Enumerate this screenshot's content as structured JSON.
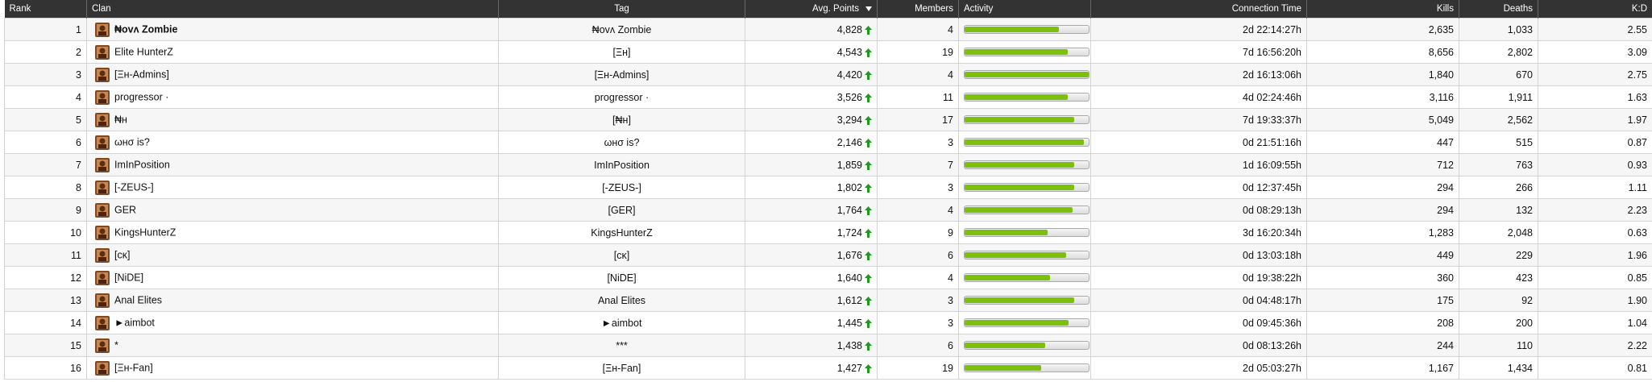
{
  "table": {
    "columns": [
      "Rank",
      "Clan",
      "Tag",
      "Avg. Points",
      "Members",
      "Activity",
      "Connection Time",
      "Kills",
      "Deaths",
      "K:D"
    ],
    "rows": [
      [
        "1",
        "₦ovʌ Zombie",
        "₦ovʌ Zombie",
        "4,828",
        "4",
        76,
        "2d 22:14:27h",
        "2,635",
        "1,033",
        "2.55"
      ],
      [
        "2",
        "Elite HunterZ",
        "[Ξн]",
        "4,543",
        "19",
        83,
        "7d 16:56:20h",
        "8,656",
        "2,802",
        "3.09"
      ],
      [
        "3",
        "[Ξн-Admins]",
        "[Ξн-Admins]",
        "4,420",
        "4",
        100,
        "2d 16:13:06h",
        "1,840",
        "670",
        "2.75"
      ],
      [
        "4",
        "progressor ·",
        "progressor ·",
        "3,526",
        "11",
        83,
        "4d 02:24:46h",
        "3,116",
        "1,911",
        "1.63"
      ],
      [
        "5",
        "₦н",
        "[₦н]",
        "3,294",
        "17",
        88,
        "7d 19:33:37h",
        "5,049",
        "2,562",
        "1.97"
      ],
      [
        "6",
        "ωнσ is?",
        "ωнσ is?",
        "2,146",
        "3",
        96,
        "0d 21:51:16h",
        "447",
        "515",
        "0.87"
      ],
      [
        "7",
        "ImInPosition",
        "ImInPosition",
        "1,859",
        "7",
        88,
        "1d 16:09:55h",
        "712",
        "763",
        "0.93"
      ],
      [
        "8",
        "[-ZEUS-]",
        "[-ZEUS-]",
        "1,802",
        "3",
        88,
        "0d 12:37:45h",
        "294",
        "266",
        "1.11"
      ],
      [
        "9",
        "GER",
        "[GER]",
        "1,764",
        "4",
        87,
        "0d 08:29:13h",
        "294",
        "132",
        "2.23"
      ],
      [
        "10",
        "KingsHunterZ",
        "KingsHunterZ",
        "1,724",
        "9",
        67,
        "3d 16:20:34h",
        "1,283",
        "2,048",
        "0.63"
      ],
      [
        "11",
        "[cκ]",
        "[cκ]",
        "1,676",
        "6",
        82,
        "0d 13:03:18h",
        "449",
        "229",
        "1.96"
      ],
      [
        "12",
        "[NiDE]",
        "[NiDE]",
        "1,640",
        "4",
        69,
        "0d 19:38:22h",
        "360",
        "423",
        "0.85"
      ],
      [
        "13",
        "Anal Elites",
        "Anal Elites",
        "1,612",
        "3",
        88,
        "0d 04:48:17h",
        "175",
        "92",
        "1.90"
      ],
      [
        "14",
        "►aimbot",
        "►aimbot",
        "1,445",
        "3",
        84,
        "0d 09:45:36h",
        "208",
        "200",
        "1.04"
      ],
      [
        "15",
        "*",
        "***",
        "1,438",
        "6",
        65,
        "0d 08:13:26h",
        "244",
        "110",
        "2.22"
      ],
      [
        "16",
        "[Ξн-Fan]",
        "[Ξн-Fan]",
        "1,427",
        "19",
        62,
        "2d 05:03:27h",
        "1,167",
        "1,434",
        "0.81"
      ]
    ]
  }
}
